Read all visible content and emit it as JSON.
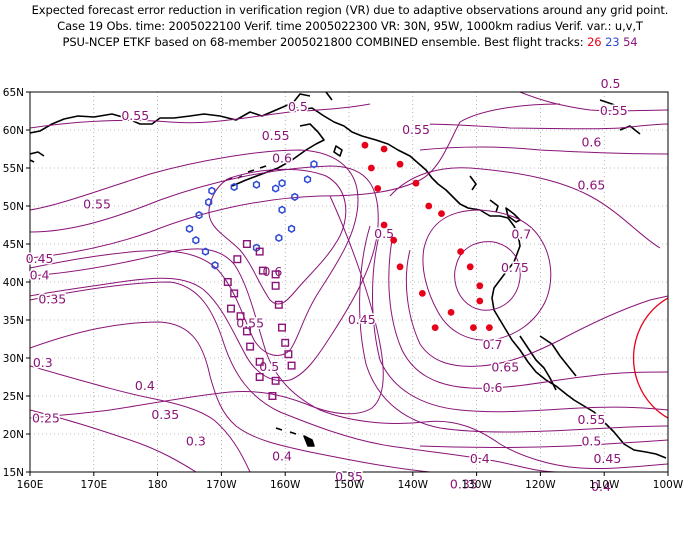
{
  "header": {
    "line1": "Expected forecast error reduction in verification region (VR) due to adaptive observations around any grid point.",
    "line2": "Case 19   Obs. time: 2005022100   Verif. time 2005022300   VR: 30N, 95W, 1000km radius   Verif. var.: u,v,T",
    "line3_prefix": "PSU-NCEP ETKF based on 68-member 2005021800 COMBINED ensemble.   Best flight tracks: ",
    "track_a": "26",
    "track_b": "23",
    "track_c": "54"
  },
  "colors": {
    "contour": "#8a1478",
    "land": "#000000",
    "grid": "#808080",
    "track_26": "#e8001a",
    "track_23": "#2d4ad6",
    "track_54": "#8a1478",
    "verification_region": "#e8001a"
  },
  "axes": {
    "lon_labels": [
      "160E",
      "170E",
      "180",
      "170W",
      "160W",
      "150W",
      "140W",
      "130W",
      "120W",
      "110W",
      "100W"
    ],
    "lat_labels": [
      "65N",
      "60N",
      "55N",
      "50N",
      "45N",
      "40N",
      "35N",
      "30N",
      "25N",
      "20N",
      "15N"
    ]
  },
  "contour_labels": [
    {
      "text": "0.5",
      "lon": -158,
      "lat": 62.5
    },
    {
      "text": "0.55",
      "lon": 176.5,
      "lat": 61.3
    },
    {
      "text": "0.55",
      "lon": -161.5,
      "lat": 58.7
    },
    {
      "text": "0.6",
      "lon": -160.5,
      "lat": 55.7
    },
    {
      "text": "0.55",
      "lon": 170.5,
      "lat": 49.7
    },
    {
      "text": "0.45",
      "lon": 161.5,
      "lat": 42.5
    },
    {
      "text": "0.4",
      "lon": 161.5,
      "lat": 40.3
    },
    {
      "text": "0.35",
      "lon": 163.5,
      "lat": 37.2
    },
    {
      "text": "0.3",
      "lon": 162,
      "lat": 28.8
    },
    {
      "text": "0.25",
      "lon": 162.5,
      "lat": 21.5
    },
    {
      "text": "0.6",
      "lon": -162,
      "lat": 40.8
    },
    {
      "text": "0.55",
      "lon": -165.5,
      "lat": 34
    },
    {
      "text": "0.5",
      "lon": -162.5,
      "lat": 28.3
    },
    {
      "text": "0.4",
      "lon": 178,
      "lat": 25.8
    },
    {
      "text": "0.35",
      "lon": -178.8,
      "lat": 22
    },
    {
      "text": "0.3",
      "lon": -174,
      "lat": 18.5
    },
    {
      "text": "0.4",
      "lon": -160.5,
      "lat": 16.5
    },
    {
      "text": "0.35",
      "lon": -150,
      "lat": 13.8
    },
    {
      "text": "0.45",
      "lon": -148,
      "lat": 34.5
    },
    {
      "text": "0.5",
      "lon": -144.5,
      "lat": 45.8
    },
    {
      "text": "0.55",
      "lon": -139.5,
      "lat": 59.5
    },
    {
      "text": "0.5",
      "lon": -109,
      "lat": 65.5
    },
    {
      "text": "0.55",
      "lon": -108.5,
      "lat": 62
    },
    {
      "text": "0.6",
      "lon": -112,
      "lat": 57.8
    },
    {
      "text": "0.65",
      "lon": -112,
      "lat": 52.2
    },
    {
      "text": "0.7",
      "lon": -123,
      "lat": 45.7
    },
    {
      "text": "0.75",
      "lon": -124,
      "lat": 41.3
    },
    {
      "text": "0.7",
      "lon": -127.5,
      "lat": 31.2
    },
    {
      "text": "0.65",
      "lon": -125.5,
      "lat": 28.2
    },
    {
      "text": "0.6",
      "lon": -127.5,
      "lat": 25.5
    },
    {
      "text": "0.55",
      "lon": -112,
      "lat": 21.3
    },
    {
      "text": "0.5",
      "lon": -112,
      "lat": 18.5
    },
    {
      "text": "0.45",
      "lon": -109.5,
      "lat": 16.2
    },
    {
      "text": "0.4",
      "lon": -129.5,
      "lat": 16.2
    },
    {
      "text": "0.35",
      "lon": -132,
      "lat": 12.8
    },
    {
      "text": "0.4",
      "lon": -110.5,
      "lat": 12.5
    }
  ],
  "track_26": [
    {
      "lon": -147.5,
      "lat": 58
    },
    {
      "lon": -144.5,
      "lat": 57.5
    },
    {
      "lon": -142,
      "lat": 55.5
    },
    {
      "lon": -146.5,
      "lat": 55
    },
    {
      "lon": -145.5,
      "lat": 52.3
    },
    {
      "lon": -139.5,
      "lat": 53
    },
    {
      "lon": -137.5,
      "lat": 50
    },
    {
      "lon": -135.5,
      "lat": 49
    },
    {
      "lon": -144.5,
      "lat": 47.5
    },
    {
      "lon": -143,
      "lat": 45.5
    },
    {
      "lon": -142,
      "lat": 42
    },
    {
      "lon": -132.5,
      "lat": 44
    },
    {
      "lon": -131,
      "lat": 42
    },
    {
      "lon": -129.5,
      "lat": 39.5
    },
    {
      "lon": -138.5,
      "lat": 38.5
    },
    {
      "lon": -134,
      "lat": 36
    },
    {
      "lon": -136.5,
      "lat": 34
    },
    {
      "lon": -130.5,
      "lat": 34
    },
    {
      "lon": -128,
      "lat": 34
    },
    {
      "lon": -129.5,
      "lat": 37.5
    }
  ],
  "track_23": [
    {
      "lon": -155.5,
      "lat": 55.5
    },
    {
      "lon": -156.5,
      "lat": 53.5
    },
    {
      "lon": -158.5,
      "lat": 51.2
    },
    {
      "lon": -160.5,
      "lat": 49.5
    },
    {
      "lon": -159,
      "lat": 47
    },
    {
      "lon": -161,
      "lat": 45.8
    },
    {
      "lon": -164.5,
      "lat": 44.5
    },
    {
      "lon": -168,
      "lat": 52.5
    },
    {
      "lon": -164.5,
      "lat": 52.8
    },
    {
      "lon": -161.5,
      "lat": 52.3
    },
    {
      "lon": -160.5,
      "lat": 53
    },
    {
      "lon": -171.5,
      "lat": 52
    },
    {
      "lon": -172,
      "lat": 50.5
    },
    {
      "lon": -173.5,
      "lat": 48.8
    },
    {
      "lon": -175,
      "lat": 47
    },
    {
      "lon": -174,
      "lat": 45.5
    },
    {
      "lon": -172.5,
      "lat": 44
    },
    {
      "lon": -171,
      "lat": 42.2
    }
  ],
  "track_54": [
    {
      "lon": -166,
      "lat": 45
    },
    {
      "lon": -164,
      "lat": 44
    },
    {
      "lon": -163.5,
      "lat": 41.5
    },
    {
      "lon": -161.5,
      "lat": 41
    },
    {
      "lon": -161.5,
      "lat": 39.5
    },
    {
      "lon": -161,
      "lat": 37
    },
    {
      "lon": -160.5,
      "lat": 34
    },
    {
      "lon": -160,
      "lat": 32
    },
    {
      "lon": -159.5,
      "lat": 30.5
    },
    {
      "lon": -159,
      "lat": 29
    },
    {
      "lon": -161.5,
      "lat": 27
    },
    {
      "lon": -162,
      "lat": 25
    },
    {
      "lon": -164,
      "lat": 27.5
    },
    {
      "lon": -164,
      "lat": 29.5
    },
    {
      "lon": -165.5,
      "lat": 31.5
    },
    {
      "lon": -166,
      "lat": 33.5
    },
    {
      "lon": -167,
      "lat": 35.5
    },
    {
      "lon": -168.5,
      "lat": 36.5
    },
    {
      "lon": -168,
      "lat": 38.5
    },
    {
      "lon": -169,
      "lat": 40
    },
    {
      "lon": -167.5,
      "lat": 43
    }
  ],
  "verification_region": {
    "lon": -95,
    "lat": 30,
    "radius_km": 1000
  }
}
